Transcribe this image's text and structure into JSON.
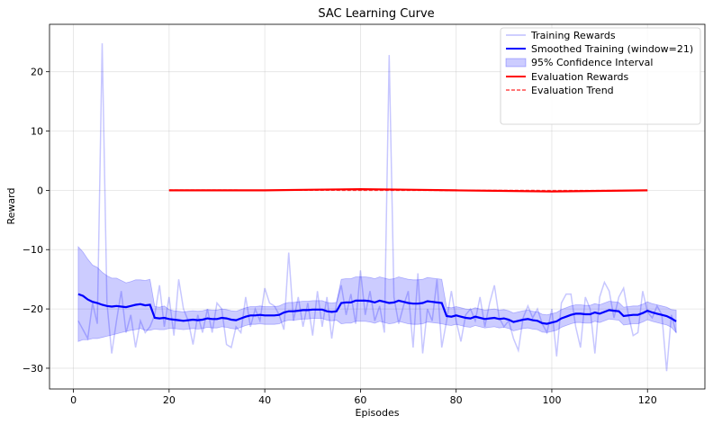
{
  "chart_data": {
    "type": "line",
    "title": "SAC Learning Curve",
    "xlabel": "Episodes",
    "ylabel": "Reward",
    "xlim": [
      -5,
      132
    ],
    "ylim": [
      -33.5,
      28
    ],
    "xticks": [
      0,
      20,
      40,
      60,
      80,
      100,
      120
    ],
    "yticks": [
      -30,
      -20,
      -10,
      0,
      10,
      20
    ],
    "grid": true,
    "legend_position": "top-right",
    "colors": {
      "training": "#0000ff",
      "smoothed": "#0000ff",
      "ci": "#0000ff",
      "evaluation": "#ff0000",
      "trend": "#ff0000"
    },
    "legend": [
      "Training Rewards",
      "Smoothed Training (window=21)",
      "95% Confidence Interval",
      "Evaluation Rewards",
      "Evaluation Trend"
    ],
    "training_rewards": {
      "x": [
        1,
        2,
        3,
        4,
        5,
        6,
        7,
        8,
        9,
        10,
        11,
        12,
        13,
        14,
        15,
        16,
        17,
        18,
        19,
        20,
        21,
        22,
        23,
        24,
        25,
        26,
        27,
        28,
        29,
        30,
        31,
        32,
        33,
        34,
        35,
        36,
        37,
        38,
        39,
        40,
        41,
        42,
        43,
        44,
        45,
        46,
        47,
        48,
        49,
        50,
        51,
        52,
        53,
        54,
        55,
        56,
        57,
        58,
        59,
        60,
        61,
        62,
        63,
        64,
        65,
        66,
        67,
        68,
        69,
        70,
        71,
        72,
        73,
        74,
        75,
        76,
        77,
        78,
        79,
        80,
        81,
        82,
        83,
        84,
        85,
        86,
        87,
        88,
        89,
        90,
        91,
        92,
        93,
        94,
        95,
        96,
        97,
        98,
        99,
        100,
        101,
        102,
        103,
        104,
        105,
        106,
        107,
        108,
        109,
        110,
        111,
        112,
        113,
        114,
        115,
        116,
        117,
        118,
        119,
        120,
        121,
        122,
        123,
        124,
        125,
        126
      ],
      "y": [
        -22,
        -23.5,
        -25,
        -19,
        -22.5,
        24.8,
        -19,
        -27.5,
        -22,
        -17,
        -24,
        -21,
        -26.5,
        -22,
        -24,
        -23,
        -21,
        -16,
        -23,
        -18,
        -24.5,
        -15,
        -20,
        -22,
        -26,
        -21,
        -24,
        -20,
        -24,
        -19,
        -20,
        -26,
        -26.5,
        -23,
        -24,
        -18,
        -23,
        -20,
        -22,
        -16.5,
        -19,
        -19.5,
        -21,
        -23.5,
        -10.5,
        -22,
        -18,
        -23,
        -19,
        -24.5,
        -17,
        -23,
        -18,
        -25,
        -19,
        -16,
        -21,
        -17.5,
        -22.5,
        -13.5,
        -21,
        -17,
        -22,
        -19.5,
        -24,
        22.8,
        -18,
        -22.5,
        -19.5,
        -17,
        -26.5,
        -14,
        -27.5,
        -20,
        -22,
        -15,
        -26.5,
        -22,
        -17,
        -22,
        -25.5,
        -21,
        -20,
        -22,
        -18,
        -23,
        -19,
        -16,
        -21.5,
        -23,
        -22,
        -25,
        -27,
        -21.5,
        -19.5,
        -21.5,
        -20,
        -22.5,
        -24,
        -20,
        -28,
        -19,
        -17.5,
        -17.5,
        -23,
        -26.5,
        -18,
        -20,
        -27.5,
        -18,
        -15.5,
        -17,
        -21.5,
        -18,
        -16.5,
        -21,
        -24.5,
        -24,
        -17,
        -20.5,
        -21.5,
        -19.5,
        -21,
        -30.5,
        -21,
        -24
      ]
    },
    "smoothed_training": {
      "x": [
        1,
        2,
        3,
        4,
        5,
        6,
        7,
        8,
        9,
        10,
        11,
        12,
        13,
        14,
        15,
        16,
        17,
        18,
        19,
        20,
        21,
        22,
        23,
        24,
        25,
        26,
        27,
        28,
        29,
        30,
        31,
        32,
        33,
        34,
        35,
        36,
        37,
        38,
        39,
        40,
        41,
        42,
        43,
        44,
        45,
        46,
        47,
        48,
        49,
        50,
        51,
        52,
        53,
        54,
        55,
        56,
        57,
        58,
        59,
        60,
        61,
        62,
        63,
        64,
        65,
        66,
        67,
        68,
        69,
        70,
        71,
        72,
        73,
        74,
        75,
        76,
        77,
        78,
        79,
        80,
        81,
        82,
        83,
        84,
        85,
        86,
        87,
        88,
        89,
        90,
        91,
        92,
        93,
        94,
        95,
        96,
        97,
        98,
        99,
        100,
        101,
        102,
        103,
        104,
        105,
        106,
        107,
        108,
        109,
        110,
        111,
        112,
        113,
        114,
        115,
        116,
        117,
        118,
        119,
        120,
        121,
        122,
        123,
        124,
        125,
        126
      ],
      "y": [
        -17.5,
        -17.8,
        -18.4,
        -18.8,
        -19.0,
        -19.3,
        -19.5,
        -19.6,
        -19.5,
        -19.6,
        -19.7,
        -19.5,
        -19.3,
        -19.2,
        -19.4,
        -19.3,
        -21.5,
        -21.6,
        -21.5,
        -21.7,
        -21.8,
        -21.9,
        -22.0,
        -21.9,
        -21.8,
        -21.9,
        -21.8,
        -21.6,
        -21.7,
        -21.7,
        -21.5,
        -21.6,
        -21.8,
        -21.9,
        -21.6,
        -21.3,
        -21.1,
        -21.1,
        -21.0,
        -21.1,
        -21.1,
        -21.1,
        -21.0,
        -20.6,
        -20.4,
        -20.4,
        -20.3,
        -20.2,
        -20.2,
        -20.1,
        -20.1,
        -20.1,
        -20.4,
        -20.5,
        -20.4,
        -19.0,
        -18.9,
        -18.9,
        -18.6,
        -18.6,
        -18.6,
        -18.7,
        -18.9,
        -18.6,
        -18.8,
        -19.0,
        -18.9,
        -18.6,
        -18.8,
        -19.0,
        -19.1,
        -19.1,
        -19.0,
        -18.7,
        -18.8,
        -18.9,
        -19.0,
        -21.2,
        -21.3,
        -21.1,
        -21.3,
        -21.5,
        -21.6,
        -21.3,
        -21.5,
        -21.7,
        -21.6,
        -21.5,
        -21.7,
        -21.6,
        -21.8,
        -22.2,
        -22.0,
        -21.8,
        -21.7,
        -21.9,
        -22.0,
        -22.4,
        -22.5,
        -22.3,
        -22.1,
        -21.6,
        -21.3,
        -21.0,
        -20.8,
        -20.8,
        -20.9,
        -20.9,
        -20.6,
        -20.8,
        -20.5,
        -20.2,
        -20.3,
        -20.4,
        -21.2,
        -21.1,
        -21.0,
        -21.0,
        -20.7,
        -20.3,
        -20.6,
        -20.8,
        -21.0,
        -21.2,
        -21.6,
        -22.1
      ]
    },
    "ci_lower": [
      -25.5,
      -25.2,
      -25.2,
      -25.0,
      -25.0,
      -24.8,
      -24.6,
      -24.4,
      -24.2,
      -24.0,
      -23.8,
      -23.6,
      -23.5,
      -23.3,
      -23.6,
      -23.6,
      -23.4,
      -23.5,
      -23.5,
      -23.3,
      -23.3,
      -23.4,
      -23.5,
      -23.4,
      -23.3,
      -23.4,
      -23.3,
      -23.1,
      -23.2,
      -23.2,
      -23.0,
      -23.1,
      -23.3,
      -23.4,
      -23.1,
      -22.8,
      -22.6,
      -22.6,
      -22.5,
      -22.6,
      -22.6,
      -22.6,
      -22.5,
      -22.1,
      -21.9,
      -21.9,
      -21.8,
      -21.7,
      -21.7,
      -21.6,
      -21.6,
      -21.6,
      -21.9,
      -22.0,
      -21.9,
      -22.5,
      -22.4,
      -22.4,
      -22.1,
      -22.1,
      -22.1,
      -22.2,
      -22.4,
      -22.1,
      -22.3,
      -22.5,
      -22.4,
      -22.1,
      -22.3,
      -22.5,
      -22.6,
      -22.6,
      -22.5,
      -22.2,
      -22.3,
      -22.4,
      -22.5,
      -22.7,
      -22.8,
      -22.6,
      -22.8,
      -23.0,
      -23.1,
      -22.8,
      -23.0,
      -23.2,
      -23.1,
      -23.0,
      -23.2,
      -23.1,
      -23.3,
      -23.7,
      -23.5,
      -23.3,
      -23.2,
      -23.4,
      -23.5,
      -23.9,
      -24.0,
      -23.8,
      -23.6,
      -23.1,
      -22.8,
      -22.5,
      -22.3,
      -22.3,
      -22.4,
      -22.4,
      -22.1,
      -22.3,
      -22.0,
      -21.7,
      -21.8,
      -21.9,
      -22.7,
      -22.6,
      -22.5,
      -22.5,
      -22.2,
      -21.8,
      -22.1,
      -22.3,
      -22.5,
      -22.7,
      -23.1,
      -24.0
    ],
    "ci_upper": [
      -9.5,
      -10.4,
      -11.6,
      -12.6,
      -13.0,
      -13.8,
      -14.4,
      -14.8,
      -14.8,
      -15.2,
      -15.6,
      -15.4,
      -15.1,
      -15.1,
      -15.2,
      -15.0,
      -19.6,
      -19.7,
      -19.5,
      -20.1,
      -20.3,
      -20.4,
      -20.5,
      -20.4,
      -20.3,
      -20.4,
      -20.3,
      -20.1,
      -20.2,
      -20.2,
      -20.0,
      -20.1,
      -20.3,
      -20.4,
      -20.1,
      -19.8,
      -19.6,
      -19.6,
      -19.5,
      -19.6,
      -19.6,
      -19.6,
      -19.5,
      -19.1,
      -18.9,
      -18.9,
      -18.8,
      -18.7,
      -18.7,
      -18.6,
      -18.6,
      -18.6,
      -18.9,
      -19.0,
      -18.9,
      -15.0,
      -14.9,
      -14.9,
      -14.6,
      -14.6,
      -14.6,
      -14.7,
      -14.9,
      -14.6,
      -14.8,
      -15.0,
      -14.9,
      -14.6,
      -14.8,
      -15.0,
      -15.1,
      -15.1,
      -15.0,
      -14.7,
      -14.8,
      -14.9,
      -15.0,
      -19.7,
      -19.8,
      -19.6,
      -19.8,
      -20.0,
      -20.1,
      -19.8,
      -20.0,
      -20.2,
      -20.1,
      -20.0,
      -20.2,
      -20.1,
      -20.3,
      -20.7,
      -20.5,
      -20.3,
      -20.2,
      -20.4,
      -20.5,
      -20.9,
      -21.0,
      -20.8,
      -20.6,
      -20.1,
      -19.8,
      -19.5,
      -19.3,
      -19.3,
      -19.4,
      -19.4,
      -19.1,
      -19.3,
      -19.0,
      -18.7,
      -18.8,
      -18.9,
      -19.7,
      -19.6,
      -19.5,
      -19.5,
      -19.2,
      -18.8,
      -19.1,
      -19.3,
      -19.5,
      -19.7,
      -20.1,
      -20.2
    ],
    "evaluation_rewards": {
      "x": [
        20,
        30,
        40,
        50,
        60,
        70,
        80,
        90,
        100,
        110,
        120
      ],
      "y": [
        0.0,
        0.0,
        0.0,
        0.1,
        0.2,
        0.1,
        0.0,
        -0.1,
        -0.2,
        -0.1,
        0.0
      ]
    },
    "evaluation_trend": {
      "x": [
        20,
        120
      ],
      "y": [
        0.05,
        -0.05
      ]
    }
  }
}
